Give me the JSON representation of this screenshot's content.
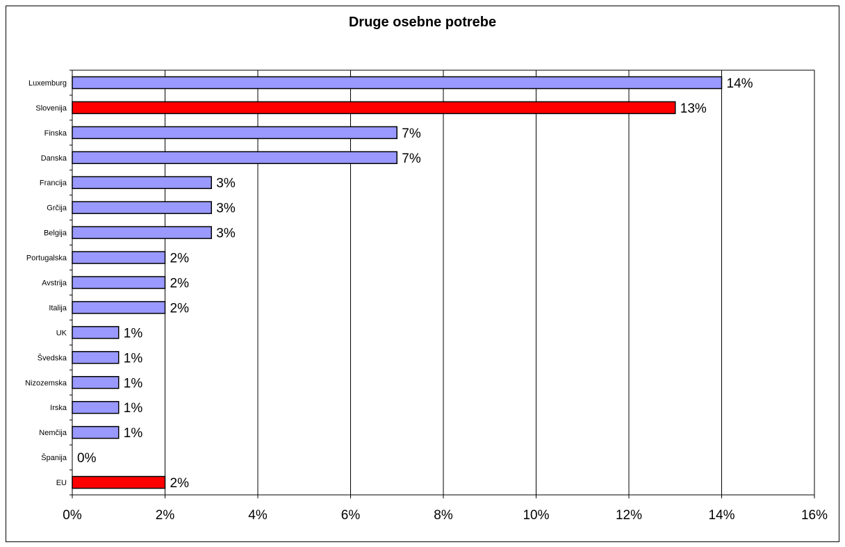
{
  "chart_data": {
    "type": "bar",
    "orientation": "horizontal",
    "title": "Druge osebne potrebe",
    "xlabel": "",
    "ylabel": "",
    "xlim": [
      0,
      16
    ],
    "x_ticks": [
      0,
      2,
      4,
      6,
      8,
      10,
      12,
      14,
      16
    ],
    "x_tick_labels": [
      "0%",
      "2%",
      "4%",
      "6%",
      "8%",
      "10%",
      "12%",
      "14%",
      "16%"
    ],
    "grid": "vertical",
    "legend": "none",
    "categories": [
      "Luxemburg",
      "Slovenija",
      "Finska",
      "Danska",
      "Francija",
      "Grčija",
      "Belgija",
      "Portugalska",
      "Avstrija",
      "Italija",
      "UK",
      "Švedska",
      "Nizozemska",
      "Irska",
      "Nemčija",
      "Španija",
      "EU"
    ],
    "values": [
      14,
      13,
      7,
      7,
      3,
      3,
      3,
      2,
      2,
      2,
      1,
      1,
      1,
      1,
      1,
      0,
      2
    ],
    "value_labels": [
      "14%",
      "13%",
      "7%",
      "7%",
      "3%",
      "3%",
      "3%",
      "2%",
      "2%",
      "2%",
      "1%",
      "1%",
      "1%",
      "1%",
      "1%",
      "0%",
      "2%"
    ],
    "colors": {
      "default": "#9999ff",
      "highlight": "#ff0000",
      "highlighted_categories": [
        "Slovenija",
        "EU"
      ]
    }
  }
}
